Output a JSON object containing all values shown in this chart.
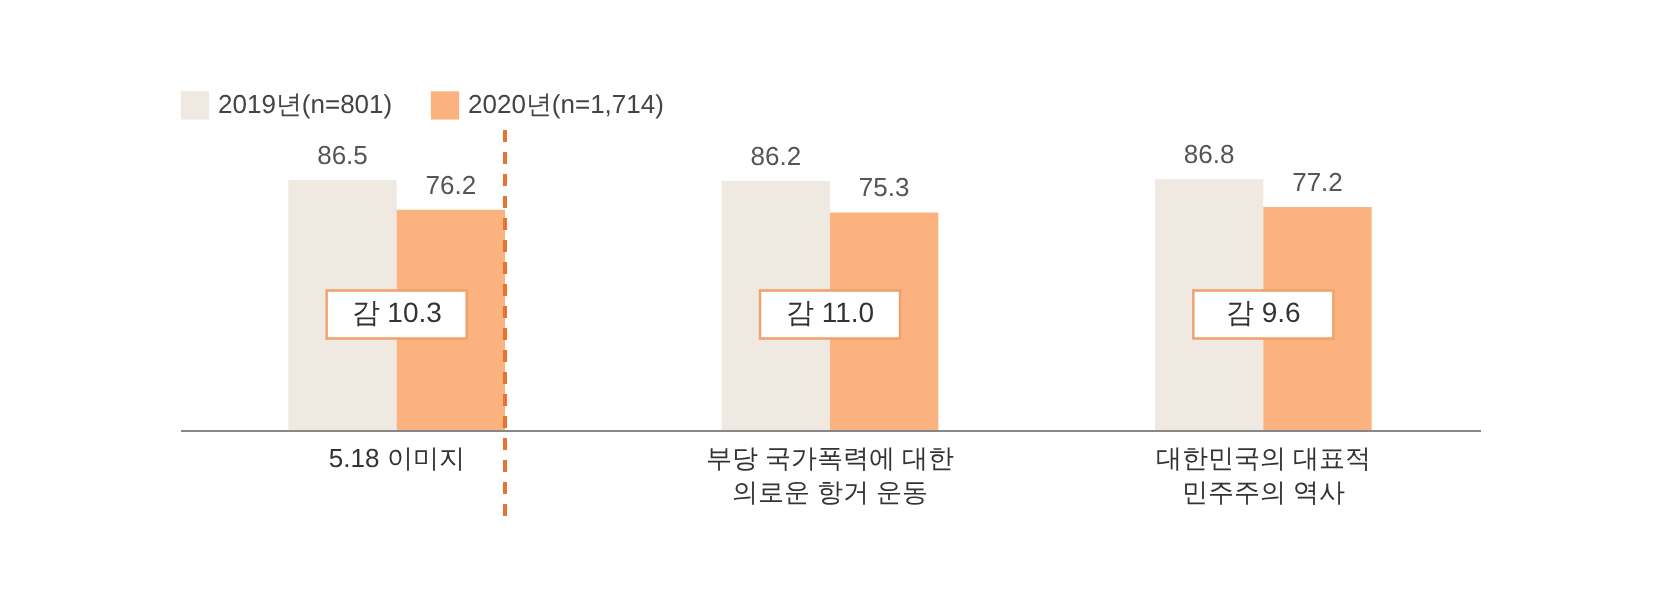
{
  "chart_data": {
    "type": "bar",
    "categories": [
      "5.18 이미지",
      "부당 국가폭력에  대한\n의로운 항거 운동",
      "대한민국의  대표적\n민주주의 역사"
    ],
    "series": [
      {
        "name": "2019년(n=801)",
        "color": "#efe9e1",
        "values": [
          86.5,
          86.2,
          86.8
        ]
      },
      {
        "name": "2020년(n=1,714)",
        "color": "#fbb27f",
        "values": [
          76.2,
          75.3,
          77.2
        ]
      }
    ],
    "data_labels": true,
    "legend": "top",
    "grid": false,
    "annotations": [
      {
        "text": "감 10.3",
        "x": "5.18 이미지",
        "y": 40
      },
      {
        "text": "감 11.0",
        "x": "부당 국가폭력에  대한\n의로운 항거 운동",
        "y": 40
      },
      {
        "text": "감 9.6",
        "x": "대한민국의  대표적\n민주주의 역사",
        "y": 40
      }
    ],
    "ref_lines": [
      {
        "axis": "x",
        "value": "5.18 이미지",
        "line_style": "dashed",
        "color": "#e8732f"
      }
    ]
  }
}
